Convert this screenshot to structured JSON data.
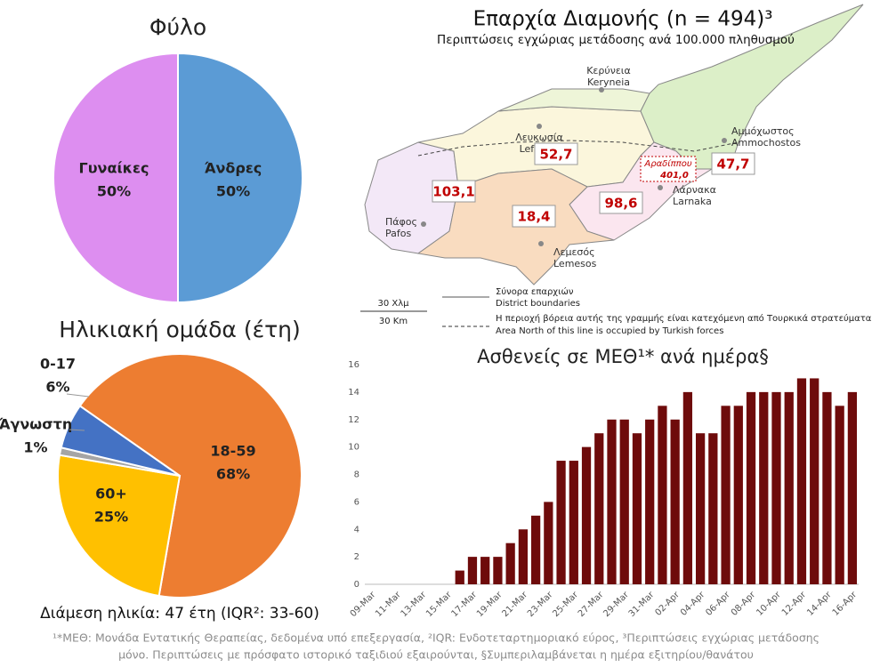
{
  "chart_data": [
    {
      "type": "pie",
      "title": "Φύλο",
      "categories": [
        "Άνδρες",
        "Γυναίκες"
      ],
      "values": [
        50,
        50
      ],
      "value_labels": [
        "50%",
        "50%"
      ],
      "colors": [
        "#5b9bd5",
        "#dd8ef0"
      ]
    },
    {
      "type": "pie",
      "title": "Ηλικιακή ομάδα (έτη)",
      "categories": [
        "18-59",
        "60+",
        "Άγνωστη",
        "0-17"
      ],
      "values": [
        68,
        25,
        1,
        6
      ],
      "value_labels": [
        "68%",
        "25%",
        "1%",
        "6%"
      ],
      "colors": [
        "#ed7d31",
        "#ffc000",
        "#a5a5a5",
        "#4472c4"
      ],
      "annotation": "Διάμεση ηλικία: 47 έτη (IQR²: 33-60)"
    },
    {
      "type": "bar",
      "title": "Ασθενείς σε ΜΕΘ¹* ανά ημέρα§",
      "color": "#6e0b0b",
      "grid": false,
      "categories": [
        "09-Mar",
        null,
        "11-Mar",
        null,
        "13-Mar",
        null,
        "15-Mar",
        null,
        "17-Mar",
        null,
        "19-Mar",
        null,
        "21-Mar",
        null,
        "23-Mar",
        null,
        "25-Mar",
        null,
        "27-Mar",
        null,
        "29-Mar",
        null,
        "31-Mar",
        null,
        "02-Apr",
        null,
        "04-Apr",
        null,
        "06-Apr",
        null,
        "08-Apr",
        null,
        "10-Apr",
        null,
        "12-Apr",
        null,
        "14-Apr",
        null,
        "16-Apr"
      ],
      "values": [
        0,
        0,
        0,
        0,
        0,
        0,
        0,
        1,
        2,
        2,
        2,
        3,
        4,
        5,
        6,
        9,
        9,
        10,
        11,
        12,
        12,
        11,
        12,
        13,
        12,
        14,
        11,
        11,
        13,
        13,
        14,
        14,
        14,
        14,
        15,
        15,
        14,
        13,
        14
      ],
      "ylim": [
        0,
        16
      ],
      "yticks": [
        0,
        2,
        4,
        6,
        8,
        10,
        12,
        14,
        16
      ]
    }
  ],
  "map": {
    "title": "Επαρχία Διαμονής (n = 494)³",
    "subtitle": "Περιπτώσεις εγχώριας μετάδοσης ανά 100.000 πληθυσμού",
    "places": [
      [
        "Κερύνεια",
        "Keryneia"
      ],
      [
        "Λευκωσία",
        "Lefkosia"
      ],
      [
        "Αμμόχωστος",
        "Ammochostos"
      ],
      [
        "Λάρνακα",
        "Larnaka"
      ],
      [
        "Πάφος",
        "Pafos"
      ],
      [
        "Λεμεσός",
        "Lemesos"
      ]
    ],
    "rates": [
      "52,7",
      "103,1",
      "18,4",
      "98,6",
      "47,7"
    ],
    "aradippou": {
      "name": "Αραδίππου",
      "rate": "401,0"
    },
    "scale": [
      "30 Χλμ",
      "30 Km"
    ],
    "legend": [
      [
        "Σύνορα επαρχιών",
        "District boundaries"
      ],
      [
        "Η περιοχή βόρεια αυτής της γραμμής είναι κατεχόμενη από Τουρκικά στρατεύματα",
        "Area North of this line is occupied by Turkish forces"
      ]
    ]
  },
  "footnote": [
    "¹*ΜΕΘ: Μονάδα Εντατικής Θεραπείας, δεδομένα υπό επεξεργασία, ²IQR: Ενδοτεταρτημοριακό εύρος, ³Περιπτώσεις εγχώριας μετάδοσης",
    "μόνο. Περιπτώσεις με πρόσφατο ιστορικό ταξιδιού εξαιρούνται, §Συμπεριλαμβάνεται η ημέρα εξιτηρίου/θανάτου"
  ]
}
